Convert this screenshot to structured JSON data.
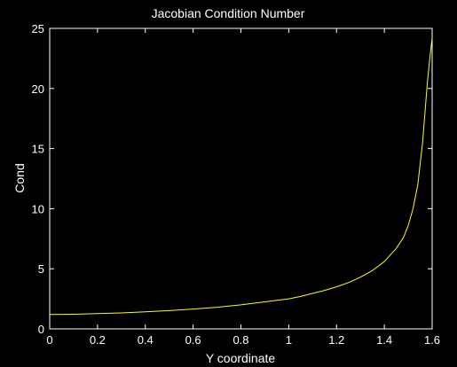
{
  "chart_data": {
    "type": "line",
    "title": "Jacobian Condition Number",
    "xlabel": "Y coordinate",
    "ylabel": "Cond",
    "xlim": [
      0,
      1.6
    ],
    "ylim": [
      0,
      25
    ],
    "xticks": [
      0,
      0.2,
      0.4,
      0.6,
      0.8,
      1,
      1.2,
      1.4,
      1.6
    ],
    "xtick_labels": [
      "0",
      "0.2",
      "0.4",
      "0.6",
      "0.8",
      "1",
      "1.2",
      "1.4",
      "1.6"
    ],
    "yticks": [
      0,
      5,
      10,
      15,
      20,
      25
    ],
    "ytick_labels": [
      "0",
      "5",
      "10",
      "15",
      "20",
      "25"
    ],
    "grid": false,
    "series": [
      {
        "color": "#ffff00",
        "x": [
          0,
          0.1,
          0.2,
          0.3,
          0.4,
          0.5,
          0.6,
          0.7,
          0.8,
          0.9,
          1.0,
          1.05,
          1.1,
          1.15,
          1.2,
          1.25,
          1.3,
          1.35,
          1.4,
          1.45,
          1.48,
          1.5,
          1.52,
          1.54,
          1.56,
          1.57,
          1.58,
          1.59,
          1.6
        ],
        "y": [
          1.2,
          1.22,
          1.27,
          1.33,
          1.42,
          1.52,
          1.65,
          1.8,
          2.0,
          2.25,
          2.5,
          2.7,
          2.95,
          3.2,
          3.5,
          3.85,
          4.3,
          4.85,
          5.6,
          6.7,
          7.6,
          8.6,
          10.0,
          12.0,
          15.5,
          18.0,
          20.5,
          22.5,
          24.2
        ]
      }
    ]
  }
}
